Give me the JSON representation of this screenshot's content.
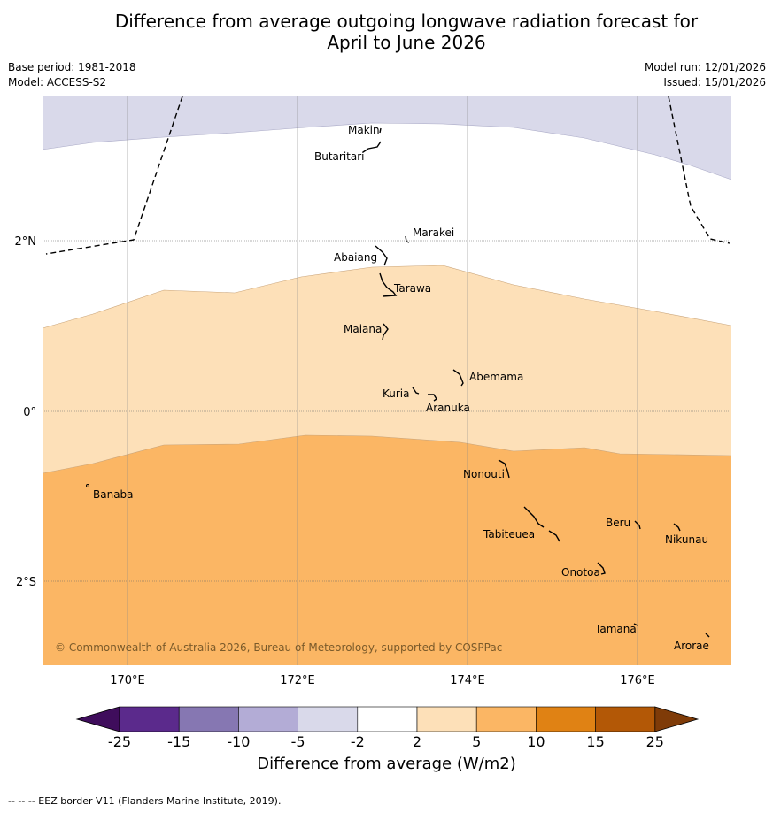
{
  "title_line1": "Difference from average outgoing longwave radiation forecast for",
  "title_line2": "April to June 2026",
  "base_period": "Base period: 1981-2018",
  "model": "Model: ACCESS-S2",
  "model_run": "Model run: 12/01/2026",
  "issued": "Issued: 15/01/2026",
  "copyright": "© Commonwealth of Australia 2026, Bureau of Meteorology, supported by COSPPac",
  "islands": [
    "Makin",
    "Butaritari",
    "Marakei",
    "Abaiang",
    "Tarawa",
    "Maiana",
    "Abemama",
    "Kuria",
    "Aranuka",
    "Nonouti",
    "Banaba",
    "Tabiteuea",
    "Beru",
    "Nikunau",
    "Onotoa",
    "Tamana",
    "Arorae"
  ],
  "lat_ticks": [
    "2°N",
    "0°",
    "2°S"
  ],
  "lon_ticks": [
    "170°E",
    "172°E",
    "174°E",
    "176°E"
  ],
  "colorbar": {
    "title": "Difference from average (W/m2)",
    "ticks": [
      "-25",
      "-15",
      "-10",
      "-5",
      "-2",
      "2",
      "5",
      "10",
      "15",
      "25"
    ],
    "colors": [
      "#3f0d5c",
      "#5b2a8c",
      "#8677b2",
      "#b3acd6",
      "#d9d9ea",
      "#ffffff",
      "#fde0b8",
      "#fbb664",
      "#e08214",
      "#b35806",
      "#7f3b08"
    ]
  },
  "footer": "--  --  -- EEZ border V11 (Flanders Marine Institute, 2019)."
}
